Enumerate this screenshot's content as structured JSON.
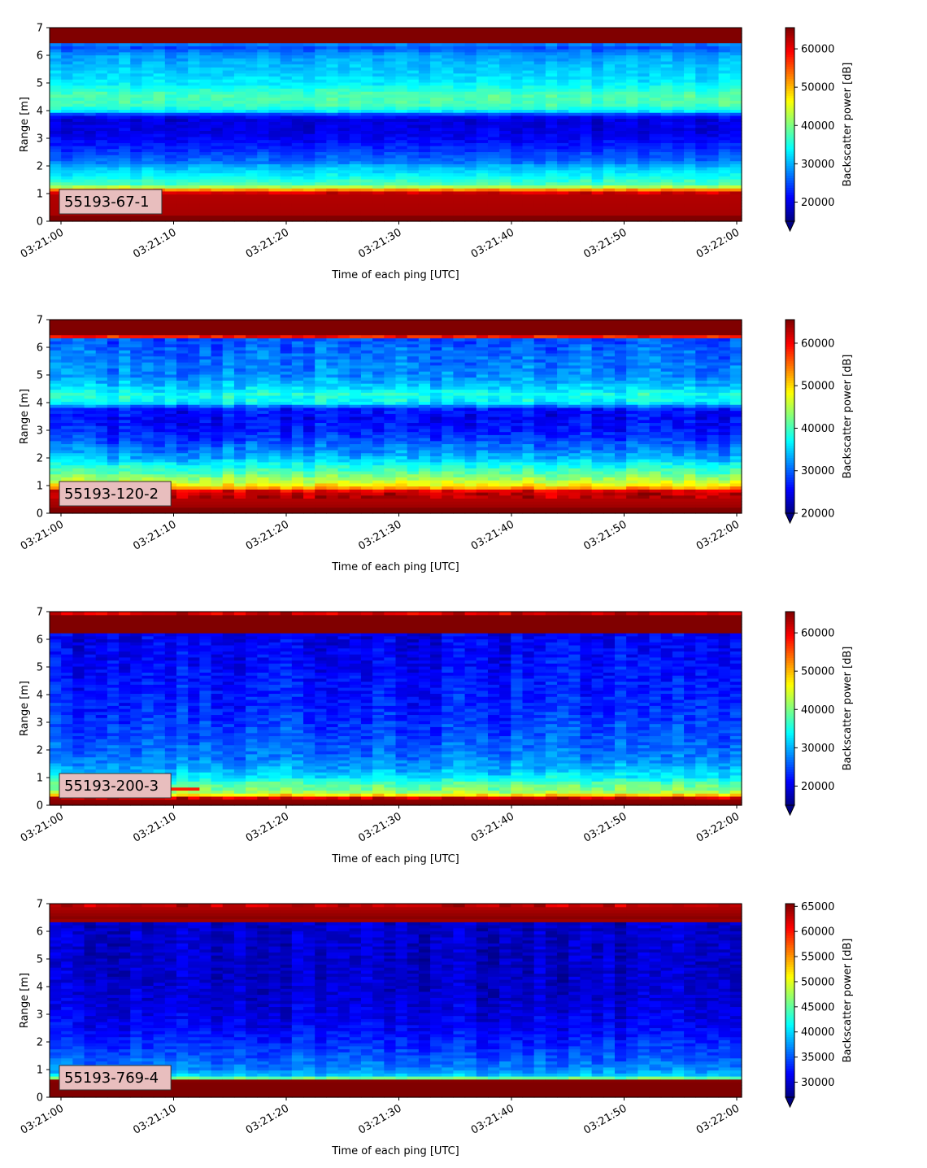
{
  "figure": {
    "background": "#ffffff"
  },
  "chart_data": [
    {
      "type": "heatmap",
      "label": "55193-67-1",
      "xlabel": "Time of each ping [UTC]",
      "ylabel": "Range [m]",
      "x_ticks": [
        "03:21:00",
        "03:21:10",
        "03:21:20",
        "03:21:30",
        "03:21:40",
        "03:21:50",
        "03:22:00"
      ],
      "y_ticks": [
        0,
        1,
        2,
        3,
        4,
        5,
        6,
        7
      ],
      "ylim": [
        0,
        7
      ],
      "colorbar": {
        "label": "Backscatter power [dB]",
        "colormap": "jet",
        "range": [
          15000,
          65535
        ],
        "extend": "min",
        "ticks": [
          20000,
          30000,
          40000,
          50000,
          60000
        ]
      },
      "profile": [
        [
          0,
          1
        ],
        [
          0.22,
          1
        ],
        [
          0.25,
          0.96
        ],
        [
          1.0,
          0.95
        ],
        [
          1.1,
          0.86
        ],
        [
          1.2,
          0.6
        ],
        [
          1.35,
          0.45
        ],
        [
          1.7,
          0.36
        ],
        [
          2.0,
          0.3
        ],
        [
          2.15,
          0.24
        ],
        [
          2.4,
          0.2
        ],
        [
          2.8,
          0.14
        ],
        [
          3.2,
          0.1
        ],
        [
          3.7,
          0.09
        ],
        [
          3.85,
          0.15
        ],
        [
          4.0,
          0.36
        ],
        [
          4.2,
          0.44
        ],
        [
          4.6,
          0.45
        ],
        [
          5.0,
          0.36
        ],
        [
          5.5,
          0.32
        ],
        [
          6.0,
          0.28
        ],
        [
          6.3,
          0.2
        ],
        [
          6.4,
          0.25
        ],
        [
          6.47,
          1
        ],
        [
          7,
          1
        ]
      ],
      "noise": 0.045,
      "hot_spot": null
    },
    {
      "type": "heatmap",
      "label": "55193-120-2",
      "xlabel": "Time of each ping [UTC]",
      "ylabel": "Range [m]",
      "x_ticks": [
        "03:21:00",
        "03:21:10",
        "03:21:20",
        "03:21:30",
        "03:21:40",
        "03:21:50",
        "03:22:00"
      ],
      "y_ticks": [
        0,
        1,
        2,
        3,
        4,
        5,
        6,
        7
      ],
      "ylim": [
        0,
        7
      ],
      "colorbar": {
        "label": "Backscatter power [dB]",
        "colormap": "jet",
        "range": [
          20000,
          65535
        ],
        "extend": "min",
        "ticks": [
          20000,
          30000,
          40000,
          50000,
          60000
        ]
      },
      "profile": [
        [
          0,
          1
        ],
        [
          0.22,
          1
        ],
        [
          0.25,
          0.97
        ],
        [
          0.8,
          0.93
        ],
        [
          0.9,
          0.75
        ],
        [
          1.0,
          0.65
        ],
        [
          1.2,
          0.55
        ],
        [
          1.5,
          0.45
        ],
        [
          1.8,
          0.38
        ],
        [
          2.0,
          0.3
        ],
        [
          2.3,
          0.25
        ],
        [
          2.6,
          0.2
        ],
        [
          3.0,
          0.15
        ],
        [
          3.5,
          0.12
        ],
        [
          3.8,
          0.15
        ],
        [
          4.0,
          0.36
        ],
        [
          4.3,
          0.4
        ],
        [
          4.6,
          0.32
        ],
        [
          5.0,
          0.26
        ],
        [
          5.5,
          0.24
        ],
        [
          6.0,
          0.22
        ],
        [
          6.3,
          0.2
        ],
        [
          6.42,
          1
        ],
        [
          7,
          1
        ]
      ],
      "noise": 0.07,
      "hot_spot": {
        "x0": 0.08,
        "x1": 0.17,
        "y0": 0.8,
        "y1": 1.1,
        "v": 0.95
      }
    },
    {
      "type": "heatmap",
      "label": "55193-200-3",
      "xlabel": "Time of each ping [UTC]",
      "ylabel": "Range [m]",
      "x_ticks": [
        "03:21:00",
        "03:21:10",
        "03:21:20",
        "03:21:30",
        "03:21:40",
        "03:21:50",
        "03:22:00"
      ],
      "y_ticks": [
        0,
        1,
        2,
        3,
        4,
        5,
        6,
        7
      ],
      "ylim": [
        0,
        7
      ],
      "colorbar": {
        "label": "Backscatter power [dB]",
        "colormap": "jet",
        "range": [
          15000,
          65535
        ],
        "extend": "min",
        "ticks": [
          20000,
          30000,
          40000,
          50000,
          60000
        ]
      },
      "profile": [
        [
          0,
          1
        ],
        [
          0.15,
          1
        ],
        [
          0.3,
          0.9
        ],
        [
          0.4,
          0.6
        ],
        [
          0.55,
          0.5
        ],
        [
          0.8,
          0.45
        ],
        [
          1.0,
          0.36
        ],
        [
          1.3,
          0.3
        ],
        [
          1.8,
          0.24
        ],
        [
          2.5,
          0.2
        ],
        [
          3.5,
          0.16
        ],
        [
          4.5,
          0.14
        ],
        [
          5.5,
          0.12
        ],
        [
          6.2,
          0.11
        ],
        [
          6.27,
          1
        ],
        [
          6.9,
          1
        ],
        [
          6.95,
          0.9
        ],
        [
          7,
          0.9
        ]
      ],
      "noise": 0.07,
      "hot_spot": {
        "x0": 0.16,
        "x1": 0.21,
        "y0": 0.5,
        "y1": 0.7,
        "v": 0.85
      }
    },
    {
      "type": "heatmap",
      "label": "55193-769-4",
      "xlabel": "Time of each ping [UTC]",
      "ylabel": "Range [m]",
      "x_ticks": [
        "03:21:00",
        "03:21:10",
        "03:21:20",
        "03:21:30",
        "03:21:40",
        "03:21:50",
        "03:22:00"
      ],
      "y_ticks": [
        0,
        1,
        2,
        3,
        4,
        5,
        6,
        7
      ],
      "ylim": [
        0,
        7
      ],
      "colorbar": {
        "label": "Backscatter power [dB]",
        "colormap": "jet",
        "range": [
          27000,
          65535
        ],
        "extend": "min",
        "ticks": [
          30000,
          35000,
          40000,
          45000,
          50000,
          55000,
          60000,
          65000
        ]
      },
      "profile": [
        [
          0,
          1
        ],
        [
          0.22,
          1
        ],
        [
          0.6,
          1
        ],
        [
          0.7,
          0.5
        ],
        [
          0.8,
          0.32
        ],
        [
          1.0,
          0.26
        ],
        [
          1.5,
          0.2
        ],
        [
          2.0,
          0.16
        ],
        [
          2.5,
          0.12
        ],
        [
          3.0,
          0.1
        ],
        [
          3.5,
          0.08
        ],
        [
          4.5,
          0.07
        ],
        [
          6.35,
          0.07
        ],
        [
          6.4,
          1
        ],
        [
          6.9,
          0.95
        ],
        [
          7,
          0.9
        ]
      ],
      "noise": 0.06,
      "hot_spot": null
    }
  ]
}
